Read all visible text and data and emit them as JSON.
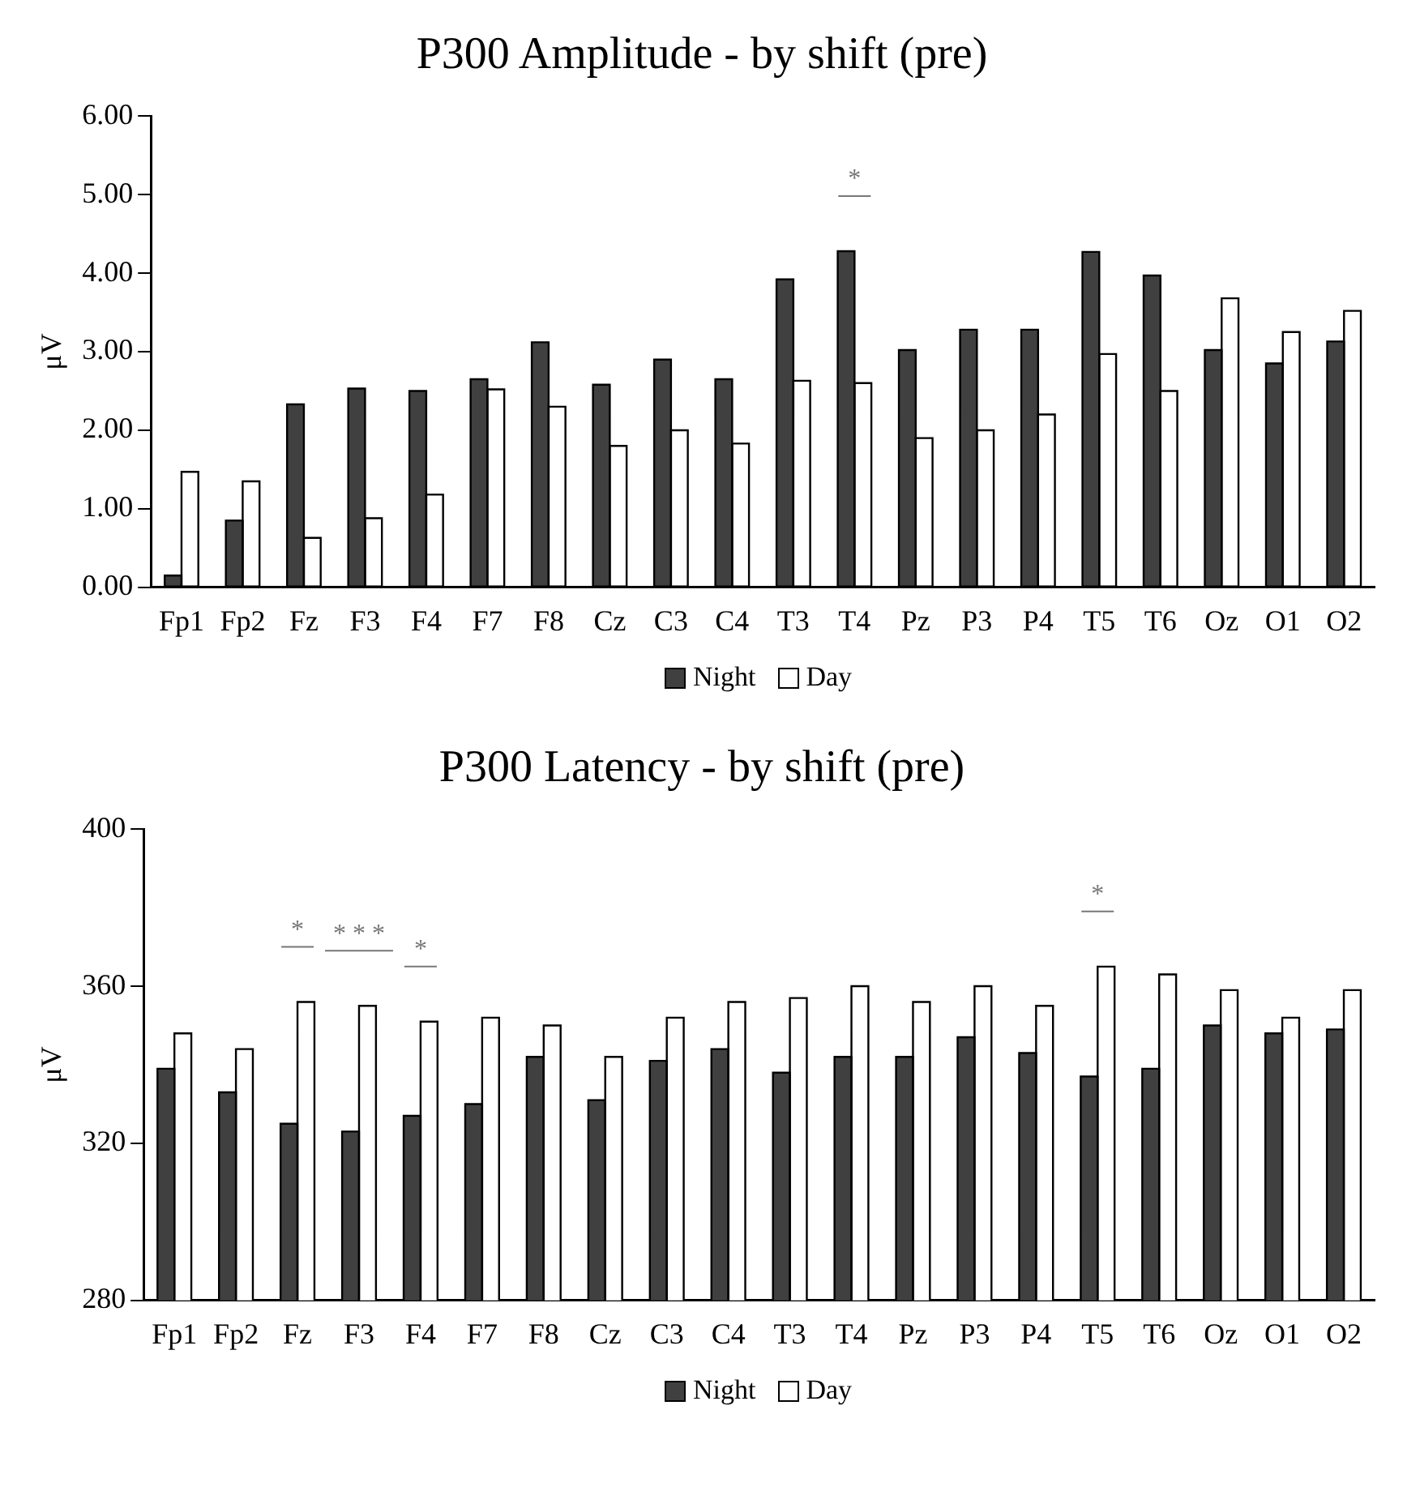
{
  "chart_data": [
    {
      "type": "bar",
      "title": "P300 Amplitude - by shift (pre)",
      "ylabel": "μV",
      "categories": [
        "Fp1",
        "Fp2",
        "Fz",
        "F3",
        "F4",
        "F7",
        "F8",
        "Cz",
        "C3",
        "C4",
        "T3",
        "T4",
        "Pz",
        "P3",
        "P4",
        "T5",
        "T6",
        "Oz",
        "O1",
        "O2"
      ],
      "series": [
        {
          "name": "Night",
          "color": "#404040",
          "values": [
            0.15,
            0.85,
            2.33,
            2.53,
            2.5,
            2.65,
            3.12,
            2.58,
            2.9,
            2.65,
            3.92,
            4.28,
            3.02,
            3.28,
            3.28,
            4.27,
            3.97,
            3.02,
            2.85,
            3.13
          ]
        },
        {
          "name": "Day",
          "color": "#ffffff",
          "values": [
            1.47,
            1.35,
            0.63,
            0.88,
            1.18,
            2.52,
            2.3,
            1.8,
            2.0,
            1.83,
            2.63,
            2.6,
            1.9,
            2.0,
            2.2,
            2.97,
            2.5,
            3.68,
            3.25,
            3.52
          ]
        }
      ],
      "ylim": [
        0,
        6
      ],
      "yticks": [
        {
          "value": 0,
          "label": "0.00"
        },
        {
          "value": 1,
          "label": "1.00"
        },
        {
          "value": 2,
          "label": "2.00"
        },
        {
          "value": 3,
          "label": "3.00"
        },
        {
          "value": 4,
          "label": "4.00"
        },
        {
          "value": 5,
          "label": "5.00"
        },
        {
          "value": 6,
          "label": "6.00"
        }
      ],
      "grid": false,
      "legend": "bottom",
      "annotations": [
        {
          "text": "*",
          "x": "T4",
          "y": 4.28
        }
      ]
    },
    {
      "type": "bar",
      "title": "P300 Latency - by shift (pre)",
      "ylabel": "μV",
      "categories": [
        "Fp1",
        "Fp2",
        "Fz",
        "F3",
        "F4",
        "F7",
        "F8",
        "Cz",
        "C3",
        "C4",
        "T3",
        "T4",
        "Pz",
        "P3",
        "P4",
        "T5",
        "T6",
        "Oz",
        "O1",
        "O2"
      ],
      "series": [
        {
          "name": "Night",
          "color": "#404040",
          "values": [
            339,
            333,
            325,
            323,
            327,
            330,
            342,
            331,
            341,
            344,
            338,
            342,
            342,
            347,
            343,
            337,
            339,
            350,
            348,
            349
          ]
        },
        {
          "name": "Day",
          "color": "#ffffff",
          "values": [
            348,
            344,
            356,
            355,
            351,
            352,
            350,
            342,
            352,
            356,
            357,
            360,
            356,
            360,
            355,
            365,
            363,
            359,
            352,
            359
          ]
        }
      ],
      "ylim": [
        280,
        400
      ],
      "yticks": [
        280,
        320,
        360,
        400
      ],
      "grid": false,
      "legend": "bottom",
      "annotations": [
        {
          "text": "*",
          "x": "Fz",
          "y": 356
        },
        {
          "text": "* * *",
          "x": "F3",
          "y": 355
        },
        {
          "text": "*",
          "x": "F4",
          "y": 351
        },
        {
          "text": "*",
          "x": "T5",
          "y": 365
        }
      ]
    }
  ]
}
